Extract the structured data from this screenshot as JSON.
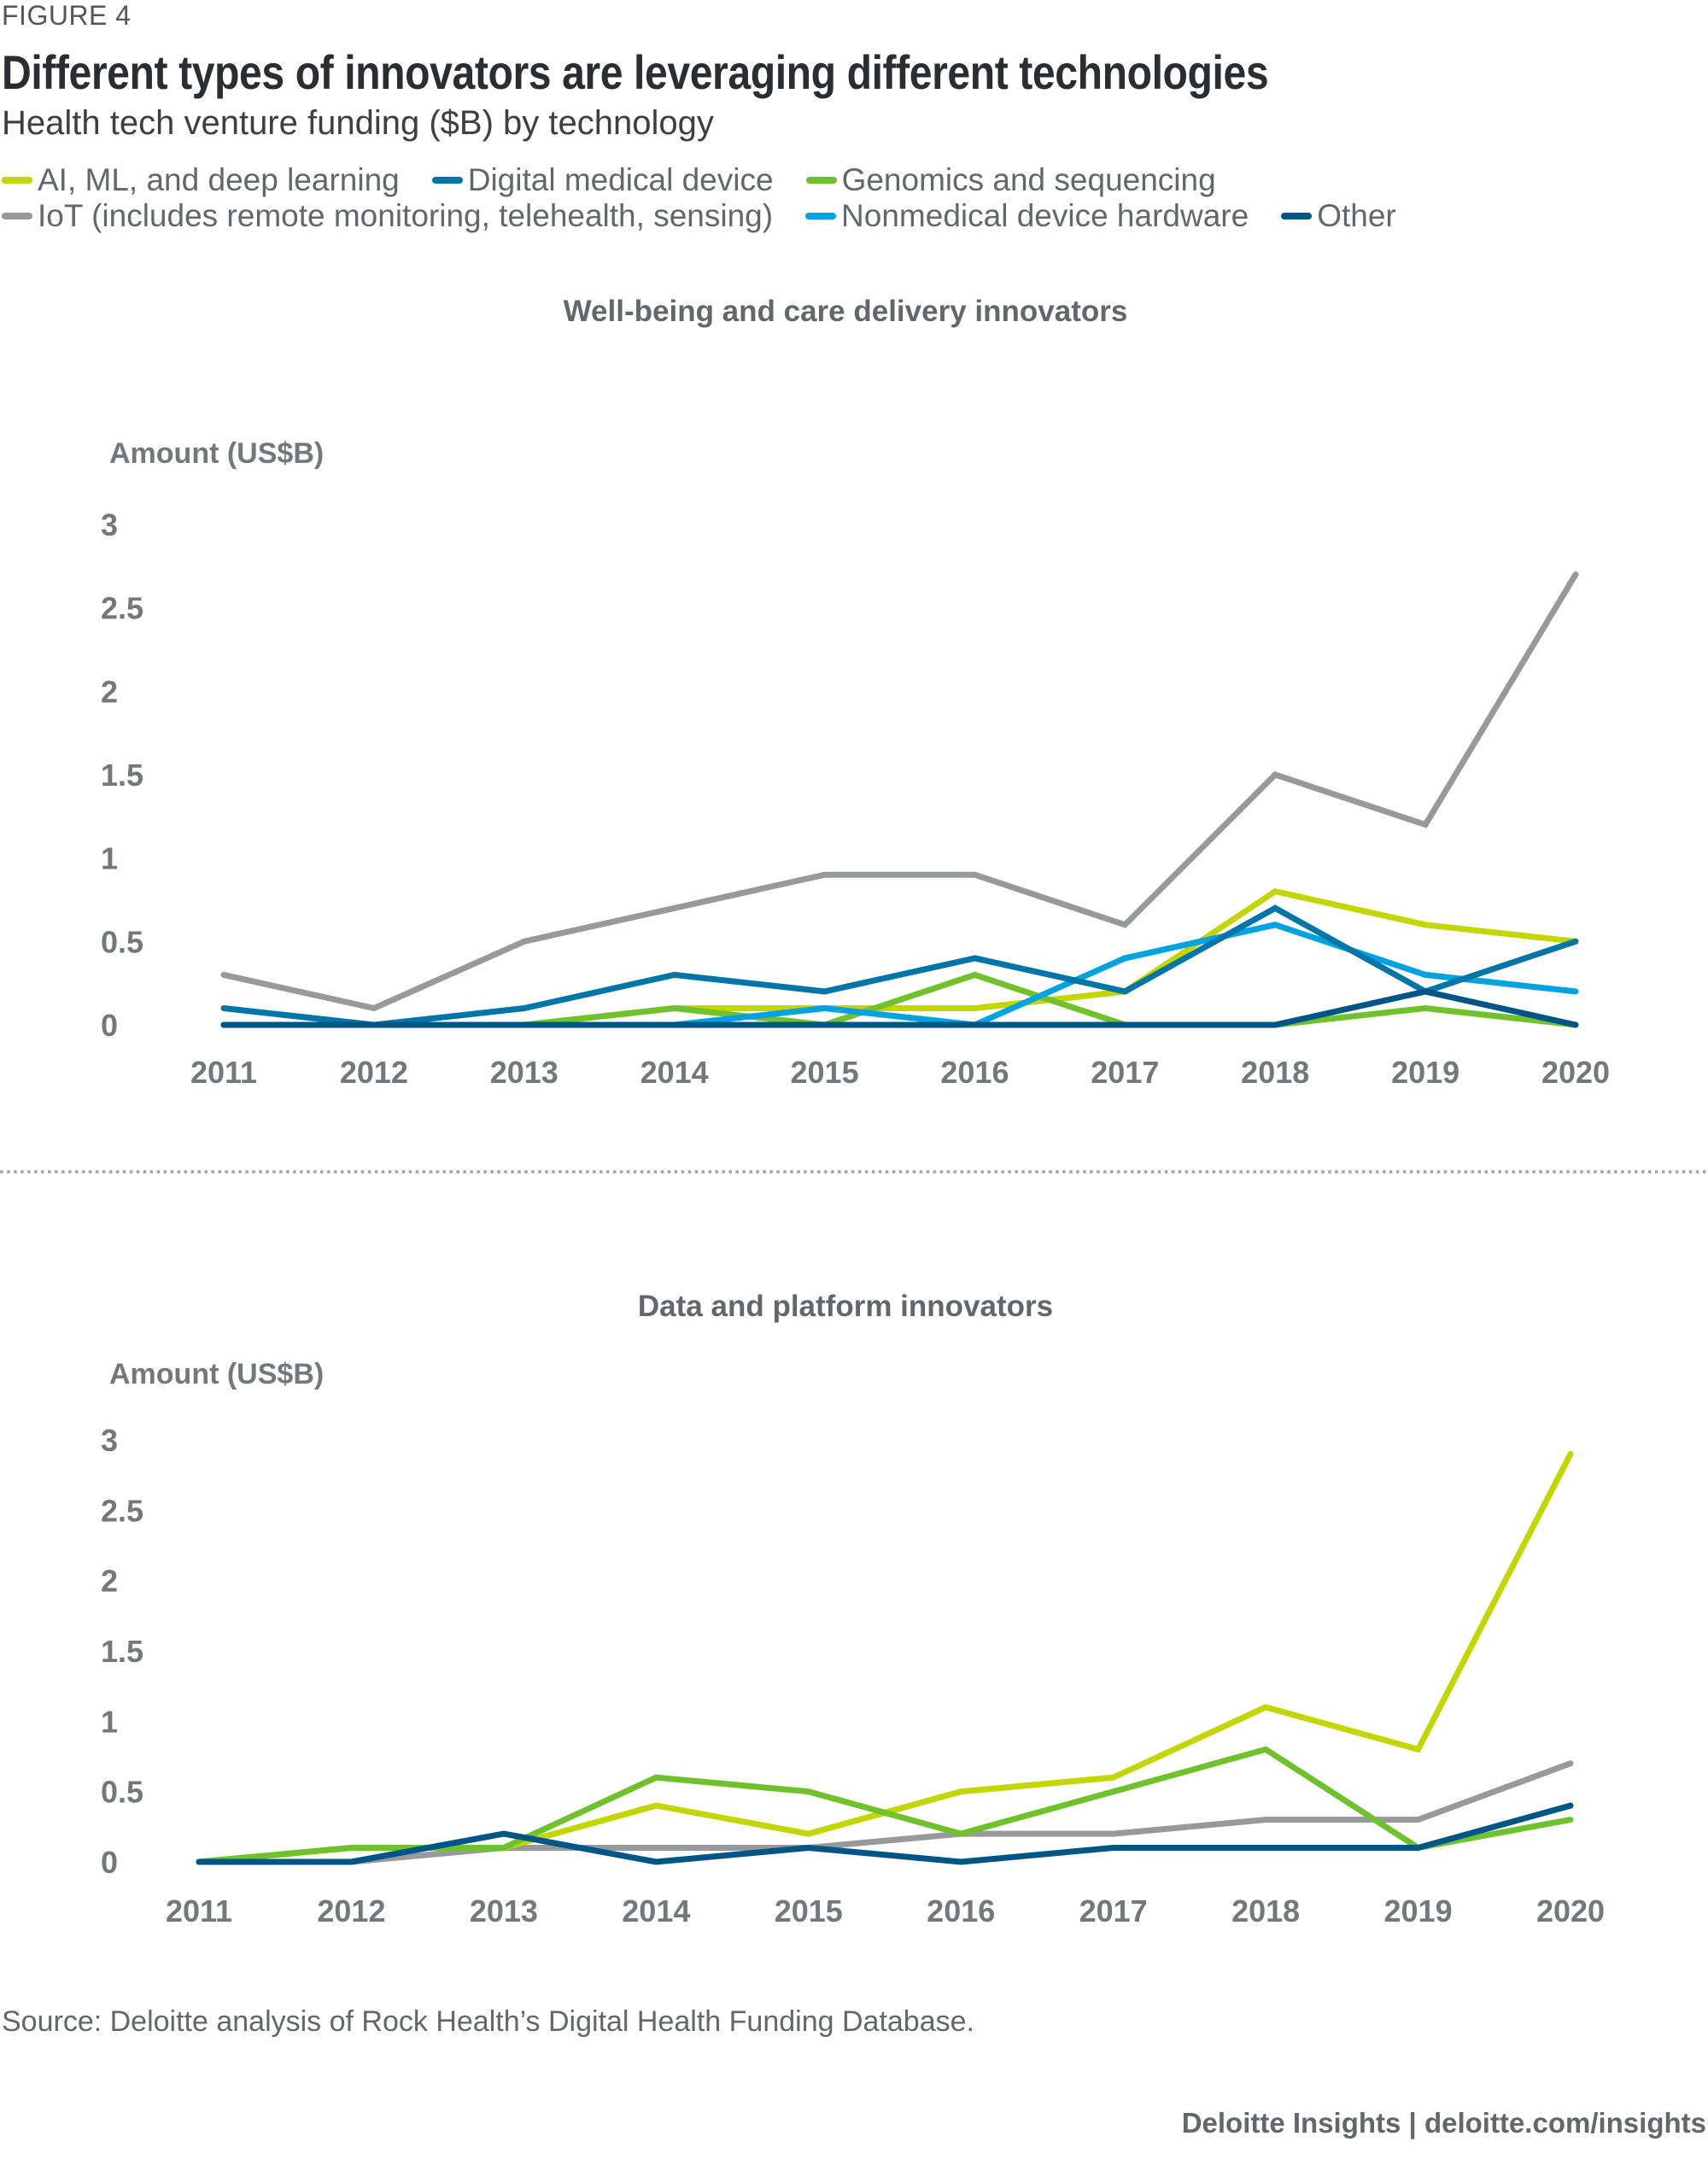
{
  "figure_label": "FIGURE 4",
  "title": "Different types of innovators are leveraging different technologies",
  "subtitle": "Health tech venture funding ($B) by technology",
  "legend": [
    {
      "key": "ai",
      "label": "AI, ML, and deep learning",
      "color": "#c4d600"
    },
    {
      "key": "dmd",
      "label": "Digital medical device",
      "color": "#0076a8"
    },
    {
      "key": "genomics",
      "label": "Genomics and sequencing",
      "color": "#6fc22b"
    },
    {
      "key": "iot",
      "label": "IoT (includes remote monitoring, telehealth, sensing)",
      "color": "#97999b"
    },
    {
      "key": "nonmed",
      "label": "Nonmedical device hardware",
      "color": "#00a3e0"
    },
    {
      "key": "other",
      "label": "Other",
      "color": "#005587"
    }
  ],
  "source": "Source: Deloitte analysis of Rock Health’s Digital Health Funding Database.",
  "credit": "Deloitte Insights | deloitte.com/insights",
  "chart_data": [
    {
      "type": "line",
      "title": "Well-being and care delivery innovators",
      "xlabel": "",
      "ylabel": "Amount (US$B)",
      "x": [
        "2011",
        "2012",
        "2013",
        "2014",
        "2015",
        "2016",
        "2017",
        "2018",
        "2019",
        "2020"
      ],
      "ylim": [
        0,
        3
      ],
      "yticks": [
        "0",
        "0.5",
        "1",
        "1.5",
        "2",
        "2.5",
        "3"
      ],
      "grid": false,
      "series": [
        {
          "key": "iot",
          "name": "IoT (includes remote monitoring, telehealth, sensing)",
          "values": [
            0.3,
            0.1,
            0.5,
            0.7,
            0.9,
            0.9,
            0.6,
            1.5,
            1.2,
            2.7
          ]
        },
        {
          "key": "ai",
          "name": "AI, ML, and deep learning",
          "values": [
            0,
            0,
            0,
            0.1,
            0.1,
            0.1,
            0.2,
            0.8,
            0.6,
            0.5
          ]
        },
        {
          "key": "genomics",
          "name": "Genomics and sequencing",
          "values": [
            0,
            0,
            0,
            0.1,
            0,
            0.3,
            0,
            0,
            0.1,
            0
          ]
        },
        {
          "key": "nonmed",
          "name": "Nonmedical device hardware",
          "values": [
            0,
            0,
            0,
            0,
            0.1,
            0,
            0.4,
            0.6,
            0.3,
            0.2
          ]
        },
        {
          "key": "dmd",
          "name": "Digital medical device",
          "values": [
            0.1,
            0,
            0.1,
            0.3,
            0.2,
            0.4,
            0.2,
            0.7,
            0.2,
            0.5
          ]
        },
        {
          "key": "other",
          "name": "Other",
          "values": [
            0,
            0,
            0,
            0,
            0,
            0,
            0,
            0,
            0.2,
            0
          ]
        }
      ]
    },
    {
      "type": "line",
      "title": "Data and platform innovators",
      "xlabel": "",
      "ylabel": "Amount (US$B)",
      "x": [
        "2011",
        "2012",
        "2013",
        "2014",
        "2015",
        "2016",
        "2017",
        "2018",
        "2019",
        "2020"
      ],
      "ylim": [
        0,
        3
      ],
      "yticks": [
        "0",
        "0.5",
        "1",
        "1.5",
        "2",
        "2.5",
        "3"
      ],
      "grid": false,
      "series": [
        {
          "key": "iot",
          "name": "IoT (includes remote monitoring, telehealth, sensing)",
          "values": [
            0,
            0,
            0.1,
            0.1,
            0.1,
            0.2,
            0.2,
            0.3,
            0.3,
            0.7
          ]
        },
        {
          "key": "ai",
          "name": "AI, ML, and deep learning",
          "values": [
            0,
            0.1,
            0.1,
            0.4,
            0.2,
            0.5,
            0.6,
            1.1,
            0.8,
            2.9
          ]
        },
        {
          "key": "genomics",
          "name": "Genomics and sequencing",
          "values": [
            0,
            0.1,
            0.1,
            0.6,
            0.5,
            0.2,
            0.5,
            0.8,
            0.1,
            0.3
          ]
        },
        {
          "key": "other",
          "name": "Other",
          "values": [
            0,
            0,
            0.2,
            0,
            0.1,
            0,
            0.1,
            0.1,
            0.1,
            0.4
          ]
        }
      ]
    }
  ]
}
